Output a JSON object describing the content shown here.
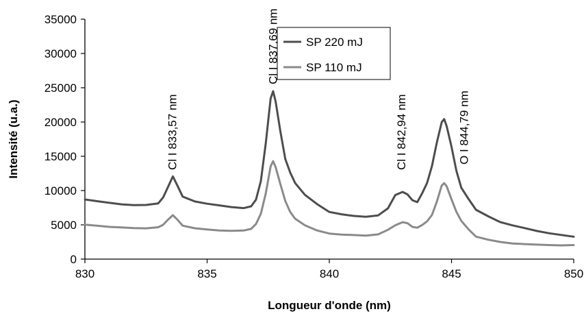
{
  "chart_data": {
    "type": "line",
    "title": "",
    "xlabel": "Longueur d'onde (nm)",
    "ylabel": "Intensité (u.a.)",
    "xlim": [
      830,
      850
    ],
    "ylim": [
      0,
      35000
    ],
    "xticks": [
      830,
      835,
      840,
      845,
      850
    ],
    "yticks": [
      0,
      5000,
      10000,
      15000,
      20000,
      25000,
      30000,
      35000
    ],
    "xtick_labels": [
      "830",
      "835",
      "840",
      "845",
      "850"
    ],
    "ytick_labels": [
      "0",
      "5000",
      "10000",
      "15000",
      "20000",
      "25000",
      "30000",
      "35000"
    ],
    "grid": false,
    "legend_position": "top-center",
    "series": [
      {
        "name": "SP 220 mJ",
        "color": "#4d4d4d",
        "x": [
          830,
          830.5,
          831,
          831.5,
          832,
          832.5,
          833,
          833.2,
          833.4,
          833.6,
          833.8,
          834,
          834.5,
          835,
          835.5,
          836,
          836.5,
          836.8,
          837,
          837.2,
          837.4,
          837.6,
          837.7,
          837.8,
          838,
          838.2,
          838.4,
          838.6,
          839,
          839.5,
          840,
          840.5,
          841,
          841.5,
          842,
          842.4,
          842.7,
          843,
          843.2,
          843.4,
          843.6,
          843.8,
          844,
          844.2,
          844.4,
          844.6,
          844.7,
          844.8,
          845,
          845.2,
          845.4,
          845.7,
          846,
          846.5,
          847,
          847.5,
          848,
          848.5,
          849,
          849.5,
          850
        ],
        "y": [
          8700,
          8500,
          8300,
          8100,
          8000,
          8000,
          8200,
          9000,
          10500,
          12000,
          10500,
          9000,
          8300,
          8000,
          7800,
          7600,
          7500,
          7800,
          8800,
          11500,
          17000,
          23500,
          24500,
          23000,
          18500,
          14500,
          12500,
          11000,
          9300,
          8000,
          6900,
          6600,
          6400,
          6300,
          6500,
          7500,
          9400,
          9800,
          9400,
          8500,
          8200,
          9500,
          11000,
          13500,
          17000,
          20000,
          20500,
          19500,
          16500,
          13000,
          10500,
          8800,
          7200,
          6200,
          5300,
          4800,
          4400,
          4000,
          3700,
          3500,
          3300
        ]
      },
      {
        "name": "SP 110 mJ",
        "color": "#8a8a8a",
        "x": [
          830,
          830.5,
          831,
          831.5,
          832,
          832.5,
          833,
          833.2,
          833.4,
          833.6,
          833.8,
          834,
          834.5,
          835,
          835.5,
          836,
          836.5,
          836.8,
          837,
          837.2,
          837.4,
          837.6,
          837.7,
          837.8,
          838,
          838.2,
          838.4,
          838.6,
          839,
          839.5,
          840,
          840.5,
          841,
          841.5,
          842,
          842.4,
          842.7,
          843,
          843.2,
          843.4,
          843.6,
          843.8,
          844,
          844.2,
          844.4,
          844.6,
          844.7,
          844.8,
          845,
          845.2,
          845.4,
          845.7,
          846,
          846.5,
          847,
          847.5,
          848,
          848.5,
          849,
          849.5,
          850
        ],
        "y": [
          5000,
          4800,
          4600,
          4500,
          4400,
          4400,
          4600,
          5000,
          5800,
          6500,
          5800,
          5000,
          4600,
          4400,
          4200,
          4100,
          4100,
          4300,
          5000,
          6500,
          9500,
          13500,
          14300,
          13500,
          11000,
          8600,
          7000,
          6000,
          5000,
          4200,
          3700,
          3500,
          3400,
          3300,
          3500,
          4200,
          4900,
          5400,
          5300,
          4800,
          4700,
          5100,
          5600,
          6500,
          8400,
          10700,
          11000,
          10500,
          8600,
          6800,
          5500,
          4300,
          3300,
          2900,
          2600,
          2400,
          2300,
          2200,
          2100,
          2000,
          2000
        ]
      }
    ],
    "annotations": [
      {
        "text": "Cl I 833,57 nm",
        "x": 833.57,
        "y": 13000
      },
      {
        "text": "Cl I 837,69 nm",
        "x": 837.69,
        "y": 25500
      },
      {
        "text": "Cl I 842,94 nm",
        "x": 842.94,
        "y": 13000
      },
      {
        "text": "O I 844,79 nm",
        "x": 845.5,
        "y": 13800
      }
    ]
  }
}
